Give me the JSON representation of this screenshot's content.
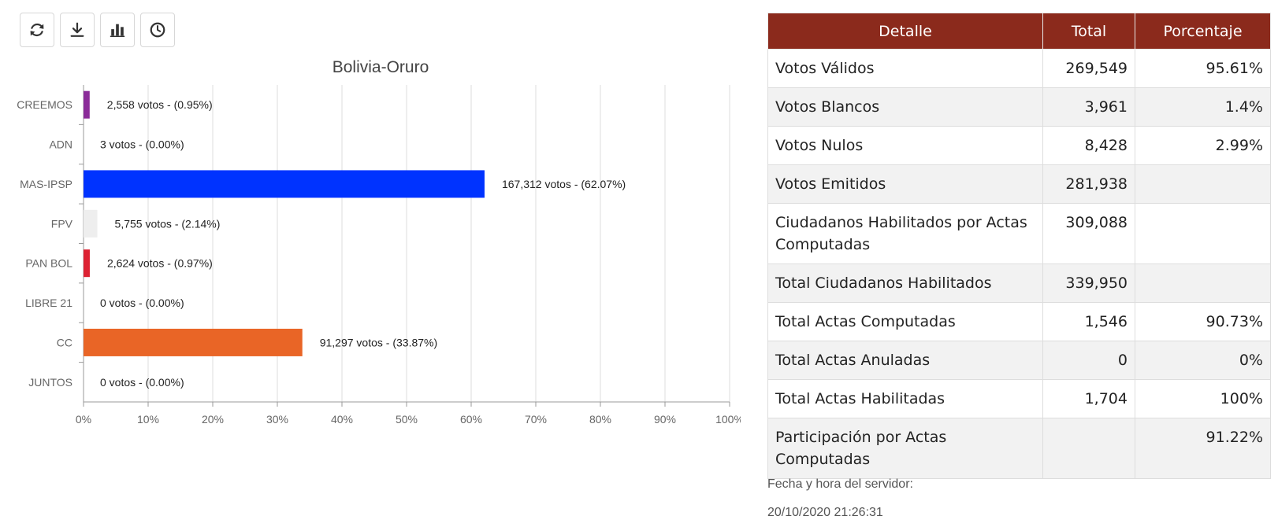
{
  "toolbar": {
    "buttons": [
      {
        "icon": "refresh-icon"
      },
      {
        "icon": "download-icon"
      },
      {
        "icon": "bar-chart-icon"
      },
      {
        "icon": "clock-icon"
      }
    ]
  },
  "colors": {
    "header_bg": "#8b2a1c",
    "CREEMOS": "#8b2c99",
    "ADN": "#2b3f8c",
    "MAS-IPSP": "#0033ff",
    "FPV": "#eeeeee",
    "PAN BOL": "#dd2233",
    "LIBRE 21": "#1e4b9e",
    "CC": "#e96526",
    "JUNTOS": "#7fbf3f"
  },
  "chart_data": {
    "type": "bar",
    "orientation": "horizontal",
    "title": "Bolivia-Oruro",
    "categories": [
      "CREEMOS",
      "ADN",
      "MAS-IPSP",
      "FPV",
      "PAN BOL",
      "LIBRE 21",
      "CC",
      "JUNTOS"
    ],
    "values": [
      0.95,
      0.0,
      62.07,
      2.14,
      0.97,
      0.0,
      33.87,
      0.0
    ],
    "votes": [
      2558,
      3,
      167312,
      5755,
      2624,
      0,
      91297,
      0
    ],
    "data_labels": [
      "2,558 votos - (0.95%)",
      "3 votos - (0.00%)",
      "167,312 votos - (62.07%)",
      "5,755 votos - (2.14%)",
      "2,624 votos - (0.97%)",
      "0 votos - (0.00%)",
      "91,297 votos - (33.87%)",
      "0 votos - (0.00%)"
    ],
    "xlim": [
      0,
      100
    ],
    "x_ticks": [
      "0%",
      "10%",
      "20%",
      "30%",
      "40%",
      "50%",
      "60%",
      "70%",
      "80%",
      "90%",
      "100%"
    ],
    "grid": true,
    "legend": "none"
  },
  "table": {
    "headers": [
      "Detalle",
      "Total",
      "Porcentaje"
    ],
    "rows": [
      {
        "detalle": "Votos Válidos",
        "total": "269,549",
        "porcentaje": "95.61%"
      },
      {
        "detalle": "Votos Blancos",
        "total": "3,961",
        "porcentaje": "1.4%"
      },
      {
        "detalle": "Votos Nulos",
        "total": "8,428",
        "porcentaje": "2.99%"
      },
      {
        "detalle": "Votos Emitidos",
        "total": "281,938",
        "porcentaje": ""
      },
      {
        "detalle": "Ciudadanos Habilitados por Actas Computadas",
        "total": "309,088",
        "porcentaje": ""
      },
      {
        "detalle": "Total Ciudadanos Habilitados",
        "total": "339,950",
        "porcentaje": ""
      },
      {
        "detalle": "Total Actas Computadas",
        "total": "1,546",
        "porcentaje": "90.73%"
      },
      {
        "detalle": "Total Actas Anuladas",
        "total": "0",
        "porcentaje": "0%"
      },
      {
        "detalle": "Total Actas Habilitadas",
        "total": "1,704",
        "porcentaje": "100%"
      },
      {
        "detalle": "Participación por Actas Computadas",
        "total": "",
        "porcentaje": "91.22%"
      }
    ]
  },
  "server": {
    "label": "Fecha y hora del servidor:",
    "datetime": "20/10/2020 21:26:31"
  }
}
